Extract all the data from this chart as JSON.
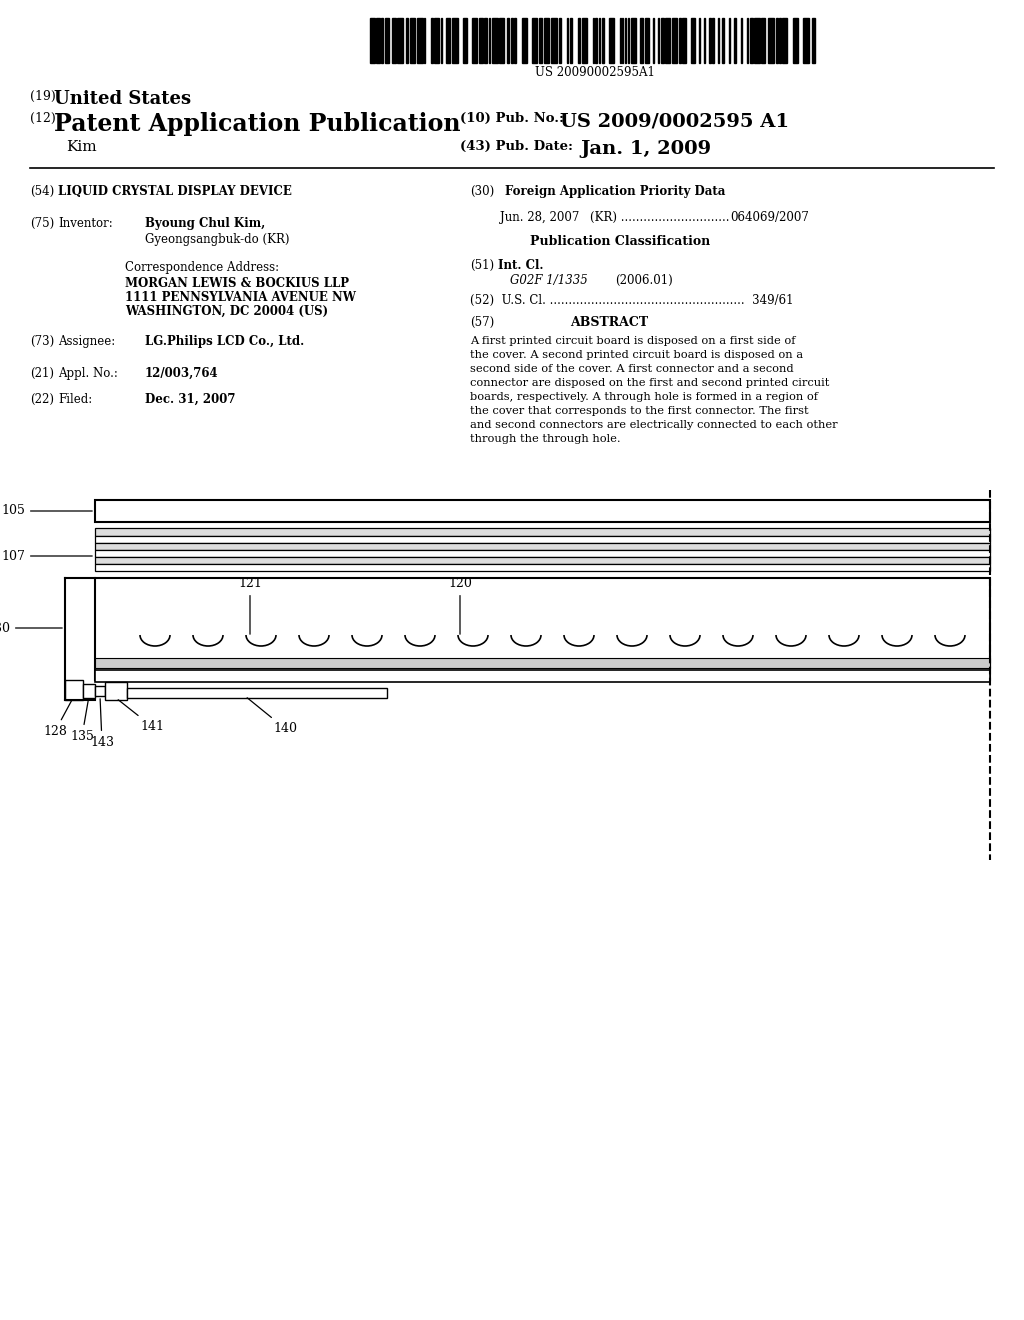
{
  "bg_color": "#ffffff",
  "barcode_text": "US 20090002595A1",
  "title_19": "(19)",
  "title_19b": "United States",
  "title_12": "(12)",
  "title_12b": "Patent Application Publication",
  "pub_no_label": "(10) Pub. No.:",
  "pub_no_value": "US 2009/0002595 A1",
  "author": "    Kim",
  "pub_date_label": "(43) Pub. Date:",
  "pub_date_value": "Jan. 1, 2009",
  "field54_num": "(54)",
  "field54_val": "LIQUID CRYSTAL DISPLAY DEVICE",
  "field75_num": "(75)",
  "field75_lab": "Inventor:",
  "field75_val1": "Byoung Chul Kim,",
  "field75_val2": "Gyeongsangbuk-do (KR)",
  "corr_label": "Correspondence Address:",
  "corr_line1": "MORGAN LEWIS & BOCKIUS LLP",
  "corr_line2": "1111 PENNSYLVANIA AVENUE NW",
  "corr_line3": "WASHINGTON, DC 20004 (US)",
  "field73_num": "(73)",
  "field73_lab": "Assignee:",
  "field73_val": "LG.Philips LCD Co., Ltd.",
  "field21_num": "(21)",
  "field21_lab": "Appl. No.:",
  "field21_val": "12/003,764",
  "field22_num": "(22)",
  "field22_lab": "Filed:",
  "field22_val": "Dec. 31, 2007",
  "field30": "(30)",
  "field30_val": "Foreign Application Priority Data",
  "priority_line1": "Jun. 28, 2007",
  "priority_line2": "(KR) .............................",
  "priority_line3": "064069/2007",
  "pub_class": "Publication Classification",
  "field51_num": "(51)",
  "field51_lab": "Int. Cl.",
  "field51_val": "G02F 1/1335",
  "field51_year": "(2006.01)",
  "field52": "(52)  U.S. Cl. ....................................................  349/61",
  "field57_num": "(57)",
  "field57_lab": "ABSTRACT",
  "abstract_text": "A first printed circuit board is disposed on a first side of the cover. A second printed circuit board is disposed on a second side of the cover. A first connector and a second connector are disposed on the first and second printed circuit boards, respectively. A through hole is formed in a region of the cover that corresponds to the first connector. The first and second connectors are electrically connected to each other through the through hole."
}
